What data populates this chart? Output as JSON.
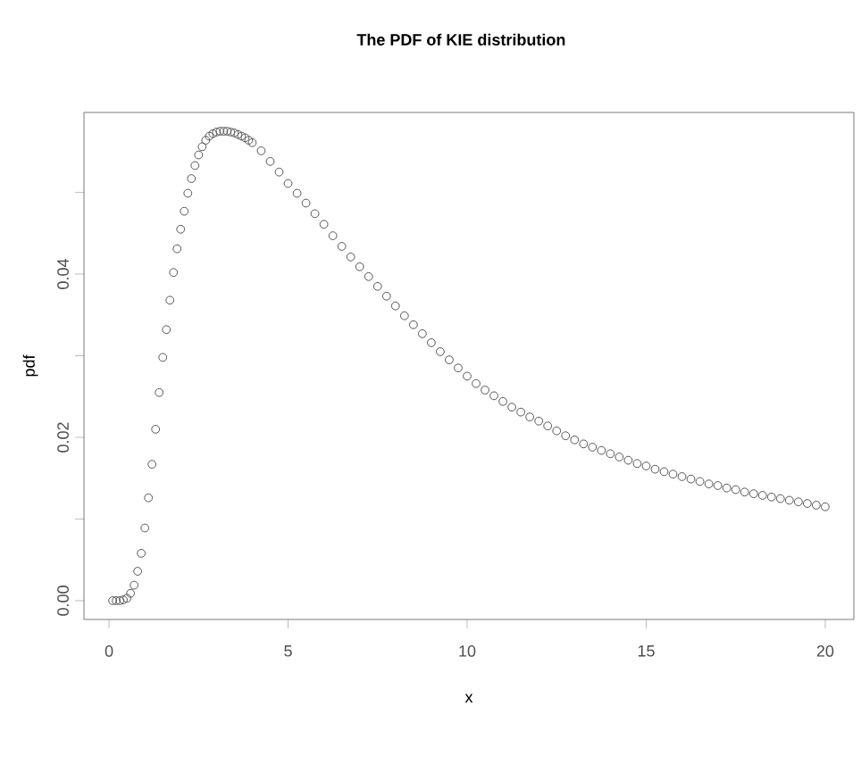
{
  "chart_data": {
    "type": "scatter",
    "title": "The PDF of KIE distribution",
    "xlabel": "x",
    "ylabel": "pdf",
    "marker": "circle",
    "color": "#555555",
    "xlim": [
      -0.7,
      20.8
    ],
    "ylim": [
      -0.0023,
      0.0598
    ],
    "xticks": [
      0,
      5,
      10,
      15,
      20
    ],
    "yticks": [
      {
        "value": 0,
        "label": "0.00"
      },
      {
        "value": 0.01,
        "label": null
      },
      {
        "value": 0.02,
        "label": "0.02"
      },
      {
        "value": 0.03,
        "label": null
      },
      {
        "value": 0.04,
        "label": "0.04"
      },
      {
        "value": 0.05,
        "label": null
      }
    ],
    "x": [
      0.1,
      0.2,
      0.3,
      0.4,
      0.5,
      0.6,
      0.7,
      0.8,
      0.9,
      1.0,
      1.1,
      1.2,
      1.3,
      1.4,
      1.5,
      1.6,
      1.7,
      1.8,
      1.9,
      2.0,
      2.1,
      2.2,
      2.3,
      2.4,
      2.5,
      2.6,
      2.7,
      2.8,
      2.9,
      3.0,
      3.1,
      3.2,
      3.3,
      3.4,
      3.5,
      3.6,
      3.7,
      3.8,
      3.9,
      4.0,
      4.25,
      4.5,
      4.75,
      5.0,
      5.25,
      5.5,
      5.75,
      6.0,
      6.25,
      6.5,
      6.75,
      7.0,
      7.25,
      7.5,
      7.75,
      8.0,
      8.25,
      8.5,
      8.75,
      9.0,
      9.25,
      9.5,
      9.75,
      10.0,
      10.25,
      10.5,
      10.75,
      11.0,
      11.25,
      11.5,
      11.75,
      12.0,
      12.25,
      12.5,
      12.75,
      13.0,
      13.25,
      13.5,
      13.75,
      14.0,
      14.25,
      14.5,
      14.75,
      15.0,
      15.25,
      15.5,
      15.75,
      16.0,
      16.25,
      16.5,
      16.75,
      17.0,
      17.25,
      17.5,
      17.75,
      18.0,
      18.25,
      18.5,
      18.75,
      19.0,
      19.25,
      19.5,
      19.75,
      20.0
    ],
    "values": [
      0,
      0,
      0,
      0.0001,
      0.0003,
      0.0009,
      0.0019,
      0.0036,
      0.0058,
      0.0089,
      0.0126,
      0.0167,
      0.021,
      0.0255,
      0.0298,
      0.0332,
      0.0368,
      0.0402,
      0.0431,
      0.0455,
      0.0477,
      0.0499,
      0.0517,
      0.0533,
      0.0546,
      0.0556,
      0.0564,
      0.0569,
      0.0572,
      0.0574,
      0.0575,
      0.0575,
      0.0575,
      0.0574,
      0.0573,
      0.0571,
      0.0569,
      0.0567,
      0.0564,
      0.0561,
      0.0551,
      0.0538,
      0.0525,
      0.0511,
      0.0499,
      0.0487,
      0.0474,
      0.0461,
      0.0447,
      0.0434,
      0.0421,
      0.0409,
      0.0397,
      0.0385,
      0.0373,
      0.0361,
      0.0349,
      0.0338,
      0.0327,
      0.0316,
      0.0305,
      0.0295,
      0.0285,
      0.0275,
      0.0266,
      0.0258,
      0.0251,
      0.0244,
      0.0237,
      0.0231,
      0.0225,
      0.022,
      0.0214,
      0.0208,
      0.0202,
      0.0197,
      0.0192,
      0.0188,
      0.0184,
      0.018,
      0.0176,
      0.0172,
      0.0168,
      0.0165,
      0.0161,
      0.0158,
      0.0155,
      0.0152,
      0.0149,
      0.0146,
      0.0143,
      0.0141,
      0.0138,
      0.0136,
      0.0133,
      0.0131,
      0.0129,
      0.0127,
      0.0125,
      0.0123,
      0.0121,
      0.0119,
      0.0117,
      0.0115
    ]
  }
}
